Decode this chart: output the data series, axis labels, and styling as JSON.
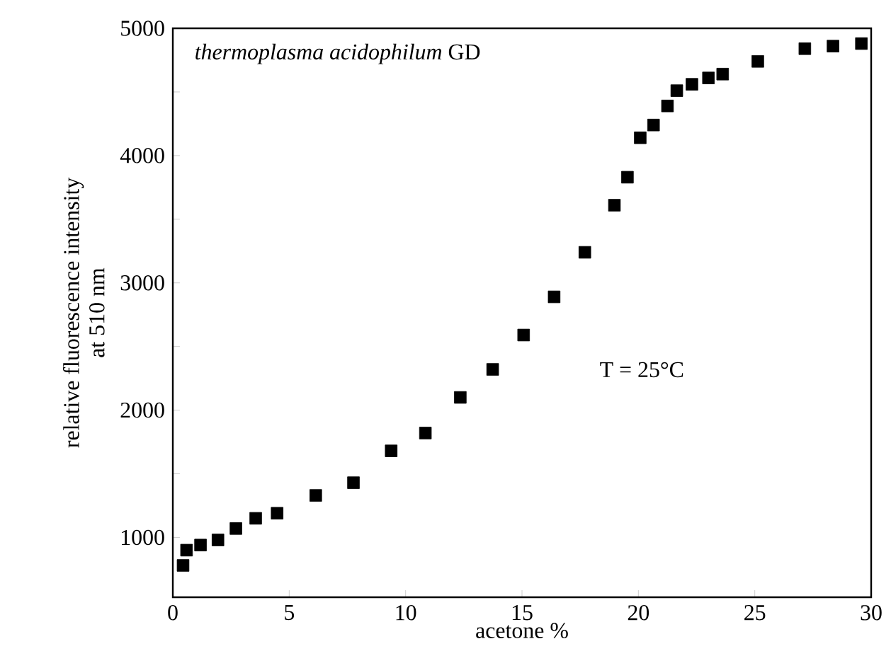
{
  "chart_data": {
    "type": "scatter",
    "xlabel": "acetone %",
    "ylabel": "relative fluorescence intensity\nat 510 nm",
    "annotations": [
      "*thermoplasma acidophilum* GD",
      "T = 25°C"
    ],
    "x": [
      0.44,
      0.59,
      1.19,
      1.94,
      2.71,
      3.56,
      4.48,
      6.14,
      7.76,
      9.38,
      10.85,
      12.35,
      13.74,
      15.07,
      16.38,
      17.7,
      18.97,
      19.53,
      20.08,
      20.65,
      21.25,
      21.65,
      22.3,
      23.01,
      23.62,
      25.13,
      27.15,
      28.36,
      29.58
    ],
    "series": [
      {
        "color": "#000000",
        "values": [
          780,
          900,
          940,
          980,
          1070,
          1150,
          1190,
          1330,
          1430,
          1680,
          1820,
          2100,
          2320,
          2590,
          2890,
          3240,
          3610,
          3830,
          4140,
          4240,
          4390,
          4510,
          4560,
          4610,
          4640,
          4740,
          4840,
          4860,
          4880
        ]
      }
    ],
    "xlim": [
      0,
      30
    ],
    "ylim": [
      530,
      5000
    ],
    "xticks": [
      0,
      5,
      10,
      15,
      20,
      25,
      30
    ],
    "yticks": [
      1000,
      {
        "value": 1500,
        "label": null
      },
      2000,
      {
        "value": 2500,
        "label": null
      },
      3000,
      {
        "value": 3500,
        "label": null
      },
      4000,
      {
        "value": 4500,
        "label": null
      },
      5000
    ],
    "marker": "square",
    "grid": false
  }
}
